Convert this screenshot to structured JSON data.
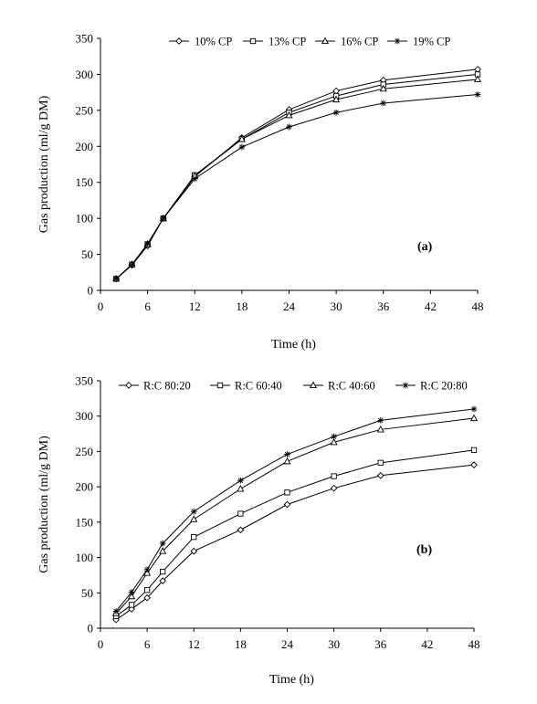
{
  "chart_data": [
    {
      "type": "line",
      "panel_label": "(a)",
      "xlabel": "Time (h)",
      "ylabel": "Gas production (ml/g DM)",
      "xlim": [
        0,
        48
      ],
      "ylim": [
        0,
        350
      ],
      "x_ticks": [
        0,
        6,
        12,
        18,
        24,
        30,
        36,
        42,
        48
      ],
      "y_ticks": [
        0,
        50,
        100,
        150,
        200,
        250,
        300,
        350
      ],
      "grid": false,
      "legend_position": "top",
      "x": [
        2,
        4,
        6,
        8,
        12,
        18,
        24,
        30,
        36,
        48
      ],
      "series": [
        {
          "name": "10% CP",
          "marker": "diamond",
          "values": [
            16,
            35,
            62,
            100,
            158,
            212,
            251,
            277,
            292,
            307
          ]
        },
        {
          "name": "13% CP",
          "marker": "square",
          "values": [
            16,
            36,
            64,
            100,
            160,
            210,
            247,
            270,
            286,
            300
          ]
        },
        {
          "name": "16% CP",
          "marker": "triangle",
          "values": [
            16,
            36,
            64,
            100,
            159,
            210,
            243,
            265,
            280,
            293
          ]
        },
        {
          "name": "19% CP",
          "marker": "asterisk",
          "values": [
            16,
            35,
            65,
            100,
            155,
            199,
            227,
            247,
            260,
            272
          ]
        }
      ]
    },
    {
      "type": "line",
      "panel_label": "(b)",
      "xlabel": "Time (h)",
      "ylabel": "Gas production (ml/g DM)",
      "xlim": [
        0,
        48
      ],
      "ylim": [
        0,
        350
      ],
      "x_ticks": [
        0,
        6,
        12,
        18,
        24,
        30,
        36,
        42,
        48
      ],
      "y_ticks": [
        0,
        50,
        100,
        150,
        200,
        250,
        300,
        350
      ],
      "grid": false,
      "legend_position": "top",
      "x": [
        2,
        4,
        6,
        8,
        12,
        18,
        24,
        30,
        36,
        48
      ],
      "series": [
        {
          "name": "R:C 80:20",
          "marker": "diamond",
          "values": [
            12,
            27,
            43,
            67,
            109,
            139,
            175,
            198,
            216,
            231
          ]
        },
        {
          "name": "R:C 60:40",
          "marker": "square",
          "values": [
            17,
            33,
            54,
            80,
            129,
            162,
            192,
            215,
            234,
            252
          ]
        },
        {
          "name": "R:C 40:60",
          "marker": "triangle",
          "values": [
            21,
            45,
            78,
            109,
            154,
            197,
            236,
            263,
            281,
            297
          ]
        },
        {
          "name": "R:C 20:80",
          "marker": "asterisk",
          "values": [
            24,
            51,
            83,
            120,
            165,
            209,
            246,
            271,
            294,
            310
          ]
        }
      ]
    }
  ]
}
